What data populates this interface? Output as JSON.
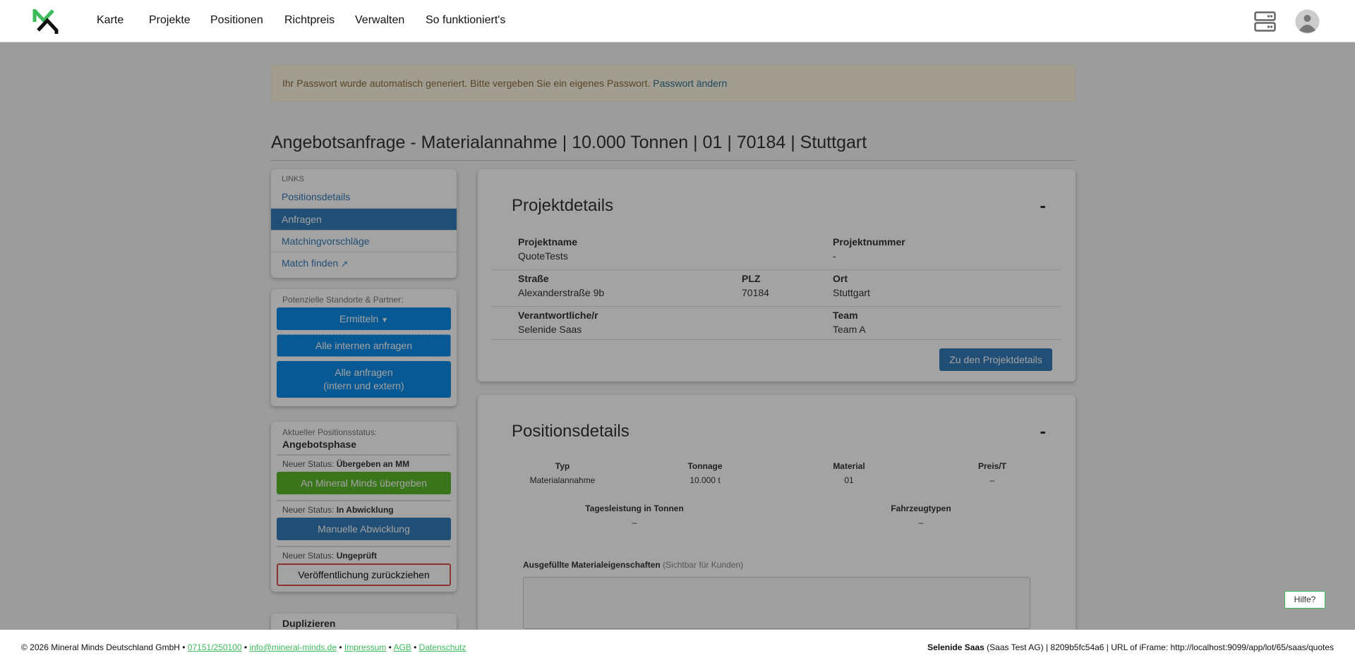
{
  "header": {
    "nav": [
      "Karte",
      "Projekte",
      "Positionen",
      "Richtpreis",
      "Verwalten",
      "So funktioniert's"
    ]
  },
  "alert": {
    "text": "Ihr Passwort wurde automatisch generiert. Bitte vergeben Sie ein eigenes Passwort.",
    "link": "Passwort ändern"
  },
  "page_title": "Angebotsanfrage - Materialannahme | 10.000 Tonnen | 01 | 70184 | Stuttgart",
  "sidebar": {
    "links_header": "LINKS",
    "links": [
      "Positionsdetails",
      "Anfragen",
      "Matchingvorschläge",
      "Match finden"
    ],
    "partners_label": "Potenzielle Standorte & Partner:",
    "ermitteln": "Ermitteln",
    "alle_internen": "Alle internen anfragen",
    "alle_line1": "Alle anfragen",
    "alle_line2": "(intern und extern)",
    "status_label": "Aktueller Positionsstatus:",
    "status_value": "Angebotsphase",
    "neuer_status": "Neuer Status:",
    "s1": "Übergeben an MM",
    "b1": "An Mineral Minds übergeben",
    "s2": "In Abwicklung",
    "b2": "Manuelle Abwicklung",
    "s3": "Ungeprüft",
    "b3": "Veröffentlichung zurückziehen",
    "duplizieren": "Duplizieren"
  },
  "projekt": {
    "title": "Projektdetails",
    "collapse": "-",
    "projektname_l": "Projektname",
    "projektname": "QuoteTests",
    "projektnummer_l": "Projektnummer",
    "projektnummer": "-",
    "strasse_l": "Straße",
    "strasse": "Alexanderstraße 9b",
    "plz_l": "PLZ",
    "plz": "70184",
    "ort_l": "Ort",
    "ort": "Stuttgart",
    "verantw_l": "Verantwortliche/r",
    "verantw": "Selenide Saas",
    "team_l": "Team",
    "team": "Team A",
    "button": "Zu den Projektdetails"
  },
  "position": {
    "title": "Positionsdetails",
    "collapse": "-",
    "typ_l": "Typ",
    "typ": "Materialannahme",
    "tonnage_l": "Tonnage",
    "tonnage": "10.000 t",
    "material_l": "Material",
    "material": "01",
    "preis_l": "Preis/T",
    "preis": "–",
    "tages_l": "Tagesleistung in Tonnen",
    "tages": "–",
    "fahrzeug_l": "Fahrzeugtypen",
    "fahrzeug": "–",
    "eig_l": "Ausgefüllte Materialeigenschaften",
    "eig_hint": "(Sichtbar für Kunden)"
  },
  "hilfe": "Hilfe?",
  "footer": {
    "copy": "© 2026 Mineral Minds Deutschland GmbH •",
    "phone": "07151/250100",
    "email": "info@mineral-minds.de",
    "impressum": "Impressum",
    "agb": "AGB",
    "datenschutz": "Datenschutz",
    "user": "Selenide Saas",
    "right": "(Saas Test AG) | 8209b5fc54a6 | URL of iFrame: http://localhost:9099/app/lot/65/saas/quotes"
  },
  "colors": {
    "primary": "#337ab7",
    "info": "#0d8ae6",
    "success": "#5cb85c",
    "danger": "#d9534f",
    "brand_green": "#3dba5b"
  }
}
